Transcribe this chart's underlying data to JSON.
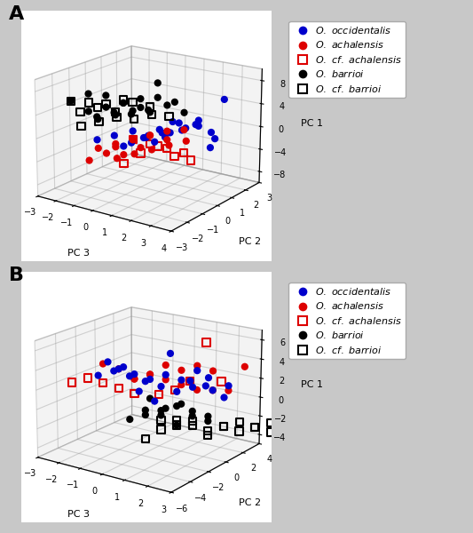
{
  "background_color": "#c8c8c8",
  "panel_bg": "#d0d0d0",
  "panel_A": {
    "label": "A",
    "xlabel": "PC 3",
    "ylabel": "PC 2",
    "zlabel": "PC 1",
    "xlim": [
      -3,
      4
    ],
    "ylim": [
      -3,
      3
    ],
    "zlim": [
      -10,
      10
    ],
    "xticks": [
      -3,
      -2,
      -1,
      0,
      1,
      2,
      3,
      4
    ],
    "yticks": [
      -3,
      -2,
      -1,
      0,
      1,
      2,
      3
    ],
    "zticks": [
      -8,
      -4,
      0,
      4,
      8
    ],
    "occ_pc3": [
      -1.0,
      -0.5,
      0.0,
      0.5,
      1.0,
      1.5,
      2.0,
      0.0,
      0.3,
      0.6,
      0.9,
      1.2,
      1.5,
      1.8,
      2.1,
      -0.5,
      0.0,
      0.5,
      1.0,
      1.5,
      -1.5,
      0.5,
      1.0,
      2.5
    ],
    "occ_pc2": [
      -0.5,
      0.0,
      0.5,
      1.0,
      1.5,
      2.0,
      2.5,
      -0.5,
      0.0,
      0.5,
      1.0,
      1.5,
      2.0,
      2.5,
      3.0,
      -0.5,
      0.2,
      0.8,
      1.3,
      1.8,
      -1.0,
      0.3,
      0.7,
      1.5
    ],
    "occ_pc1": [
      -1.0,
      -2.5,
      -1.5,
      -2.0,
      -1.0,
      -0.5,
      -3.0,
      0.5,
      -1.0,
      0.0,
      1.0,
      -0.5,
      0.5,
      -2.0,
      3.5,
      -2.5,
      -1.5,
      -1.0,
      0.5,
      0.0,
      -1.5,
      -2.0,
      -0.5,
      -3.0
    ],
    "ach_pc3": [
      -1.0,
      -0.5,
      0.0,
      0.5,
      1.0,
      0.0,
      0.5,
      1.0,
      1.5,
      2.0,
      -0.5,
      0.0,
      0.5,
      1.0,
      1.5,
      -1.5,
      -1.0,
      -0.5,
      0.0
    ],
    "ach_pc2": [
      -1.5,
      -1.0,
      -0.5,
      0.0,
      0.5,
      -1.5,
      -1.0,
      -0.5,
      0.0,
      0.5,
      -1.0,
      -0.5,
      0.0,
      0.5,
      1.0,
      -1.5,
      -1.0,
      -0.5,
      0.0
    ],
    "ach_pc1": [
      -2.0,
      -1.5,
      -1.0,
      -0.5,
      0.0,
      -3.0,
      -2.5,
      -2.0,
      -1.5,
      -1.0,
      -2.0,
      -1.0,
      -0.5,
      -1.5,
      0.0,
      -4.5,
      -3.5,
      -4.0,
      -3.0
    ],
    "cf_ach_pc3": [
      0.0,
      0.5,
      1.0,
      1.5,
      -0.5,
      0.0,
      0.5,
      1.0,
      1.5
    ],
    "cf_ach_pc2": [
      -0.5,
      0.0,
      0.5,
      1.0,
      -0.5,
      0.0,
      0.5,
      1.0,
      1.5
    ],
    "cf_ach_pc1": [
      -1.0,
      -2.0,
      -3.0,
      -4.0,
      -5.5,
      -4.0,
      -3.0,
      -5.0,
      -6.0
    ],
    "bar_pc3": [
      -1.5,
      -1.0,
      -0.5,
      0.0,
      0.5,
      1.0,
      -1.0,
      -0.5,
      0.0,
      0.5,
      1.0,
      1.5,
      -1.5,
      -1.0,
      -0.5,
      0.0,
      -2.0,
      -1.5,
      -1.0,
      -0.5,
      0.0,
      0.5
    ],
    "bar_pc2": [
      -1.5,
      -1.0,
      -0.5,
      0.0,
      0.5,
      1.0,
      -1.5,
      -1.0,
      -0.5,
      0.0,
      0.5,
      1.0,
      -1.0,
      -0.5,
      0.0,
      0.5,
      -2.0,
      -1.5,
      -1.0,
      -0.5,
      0.0,
      0.5
    ],
    "bar_pc1": [
      4.0,
      4.5,
      5.0,
      4.0,
      5.5,
      4.5,
      3.0,
      3.5,
      4.0,
      3.5,
      4.5,
      3.0,
      2.5,
      3.0,
      2.5,
      3.0,
      6.0,
      7.0,
      6.5,
      5.0,
      5.5,
      8.0
    ],
    "cf_bar_pc3": [
      -1.5,
      -1.0,
      -0.5,
      0.0,
      0.5,
      -1.0,
      -0.5,
      0.0,
      0.5,
      1.0,
      1.5,
      -2.0,
      -1.5,
      -1.0,
      -0.5
    ],
    "cf_bar_pc2": [
      -2.0,
      -1.5,
      -1.0,
      -0.5,
      0.0,
      -2.5,
      -2.0,
      -1.5,
      -1.0,
      -0.5,
      0.0,
      -2.0,
      -1.5,
      -1.0,
      -0.5
    ],
    "cf_bar_pc1": [
      4.5,
      5.0,
      4.0,
      5.5,
      4.5,
      3.0,
      3.5,
      4.0,
      3.5,
      4.0,
      3.5,
      6.0,
      5.5,
      5.0,
      5.5
    ]
  },
  "panel_B": {
    "label": "B",
    "xlabel": "PC 3",
    "ylabel": "PC 2",
    "zlabel": "PC 1",
    "xlim": [
      -3,
      3
    ],
    "ylim": [
      -6,
      4
    ],
    "zlim": [
      -5,
      7
    ],
    "xticks": [
      -3,
      -2,
      -1,
      0,
      1,
      2,
      3
    ],
    "yticks": [
      -6,
      -4,
      -2,
      0,
      2,
      4
    ],
    "zticks": [
      -4,
      -2,
      0,
      2,
      4,
      6
    ],
    "occ_pc3": [
      -1.5,
      -1.0,
      -0.5,
      0.0,
      0.5,
      1.0,
      1.5,
      2.0,
      2.5,
      -1.0,
      -0.5,
      0.0,
      0.5,
      1.0,
      1.5,
      2.0,
      2.5,
      -1.5,
      -1.0,
      -0.5,
      0.0,
      0.5,
      1.0,
      1.5
    ],
    "occ_pc2": [
      -3.0,
      -2.0,
      -1.5,
      -1.0,
      -0.5,
      0.0,
      0.5,
      1.0,
      1.5,
      -2.5,
      -2.0,
      -1.5,
      -1.0,
      -0.5,
      0.0,
      0.5,
      1.0,
      -2.0,
      -1.5,
      -1.0,
      -0.5,
      0.0,
      1.0,
      1.5
    ],
    "occ_pc1": [
      3.0,
      3.5,
      3.0,
      2.5,
      3.0,
      2.5,
      3.5,
      1.5,
      2.0,
      3.5,
      3.0,
      2.5,
      2.0,
      1.5,
      2.0,
      3.0,
      1.0,
      4.0,
      3.5,
      1.0,
      0.0,
      5.0,
      2.0,
      1.5
    ],
    "ach_pc3": [
      -1.5,
      -1.0,
      -0.5,
      0.0,
      0.5,
      1.0,
      1.5,
      2.0,
      2.5,
      3.0,
      -0.5,
      0.0,
      0.5,
      1.0,
      1.5,
      2.0
    ],
    "ach_pc2": [
      -2.5,
      -2.0,
      -1.5,
      -1.0,
      -0.5,
      0.0,
      0.5,
      1.0,
      1.5,
      2.0,
      -1.5,
      -1.0,
      -0.5,
      0.0,
      0.5,
      1.0
    ],
    "ach_pc1": [
      4.0,
      3.5,
      2.5,
      3.0,
      4.0,
      3.5,
      4.0,
      3.5,
      1.5,
      4.0,
      2.5,
      3.0,
      2.5,
      2.0,
      1.5,
      1.5
    ],
    "cf_ach_pc3": [
      -2.5,
      -2.0,
      -1.5,
      -1.0,
      -0.5,
      0.0,
      0.5,
      1.0,
      1.5,
      2.0
    ],
    "cf_ach_pc2": [
      -3.5,
      -3.0,
      -2.5,
      -2.0,
      -1.5,
      0.0,
      0.5,
      1.0,
      1.5,
      2.0
    ],
    "cf_ach_pc1": [
      2.0,
      2.5,
      2.0,
      1.5,
      1.0,
      0.5,
      1.0,
      2.0,
      6.0,
      2.0
    ],
    "bar_pc3": [
      0.0,
      0.5,
      1.0,
      1.5,
      2.0,
      -0.5,
      0.0,
      0.5,
      1.0,
      1.5,
      2.0,
      0.0,
      0.5,
      1.0
    ],
    "bar_pc2": [
      -1.5,
      -1.0,
      -0.5,
      0.0,
      0.5,
      -2.0,
      -1.5,
      -1.0,
      -0.5,
      0.0,
      0.5,
      -1.0,
      -0.5,
      0.0
    ],
    "bar_pc1": [
      -0.5,
      -1.0,
      0.0,
      -0.5,
      -1.0,
      -1.5,
      -1.0,
      -0.5,
      -2.0,
      -1.0,
      -1.5,
      0.5,
      -0.5,
      0.0
    ],
    "cf_bar_pc3": [
      0.5,
      1.0,
      1.5,
      2.0,
      2.5,
      3.0,
      3.5,
      4.0,
      0.0,
      0.5,
      1.0,
      1.5,
      2.0,
      2.5,
      3.0,
      3.5,
      4.0,
      4.5
    ],
    "cf_bar_pc2": [
      -1.0,
      -0.5,
      0.0,
      0.5,
      1.0,
      1.5,
      2.0,
      2.5,
      -1.5,
      -1.0,
      -0.5,
      0.0,
      0.5,
      1.0,
      1.5,
      2.0,
      2.5,
      3.0
    ],
    "cf_bar_pc1": [
      -1.5,
      -2.0,
      -1.5,
      -2.5,
      -2.0,
      -1.5,
      -2.0,
      -2.5,
      -3.5,
      -2.5,
      -1.5,
      -2.0,
      -3.0,
      -2.0,
      -2.5,
      -2.0,
      -1.5,
      -2.0
    ]
  },
  "legend_items": [
    {
      "label": "O. occidentalis",
      "color": "#0000cc",
      "marker": "o",
      "open": false
    },
    {
      "label": "O. achalensis",
      "color": "#dd0000",
      "marker": "o",
      "open": false
    },
    {
      "label": "O. cf. achalensis",
      "color": "#dd0000",
      "marker": "s",
      "open": true
    },
    {
      "label": "O. barrioi",
      "color": "#000000",
      "marker": "o",
      "open": false
    },
    {
      "label": "O. cf. barrioi",
      "color": "#000000",
      "marker": "s",
      "open": true
    }
  ],
  "occ_color": "#0000cc",
  "ach_color": "#dd0000",
  "cf_ach_color": "#dd0000",
  "bar_color": "#000000",
  "cf_bar_color": "#000000",
  "marker_size": 35
}
